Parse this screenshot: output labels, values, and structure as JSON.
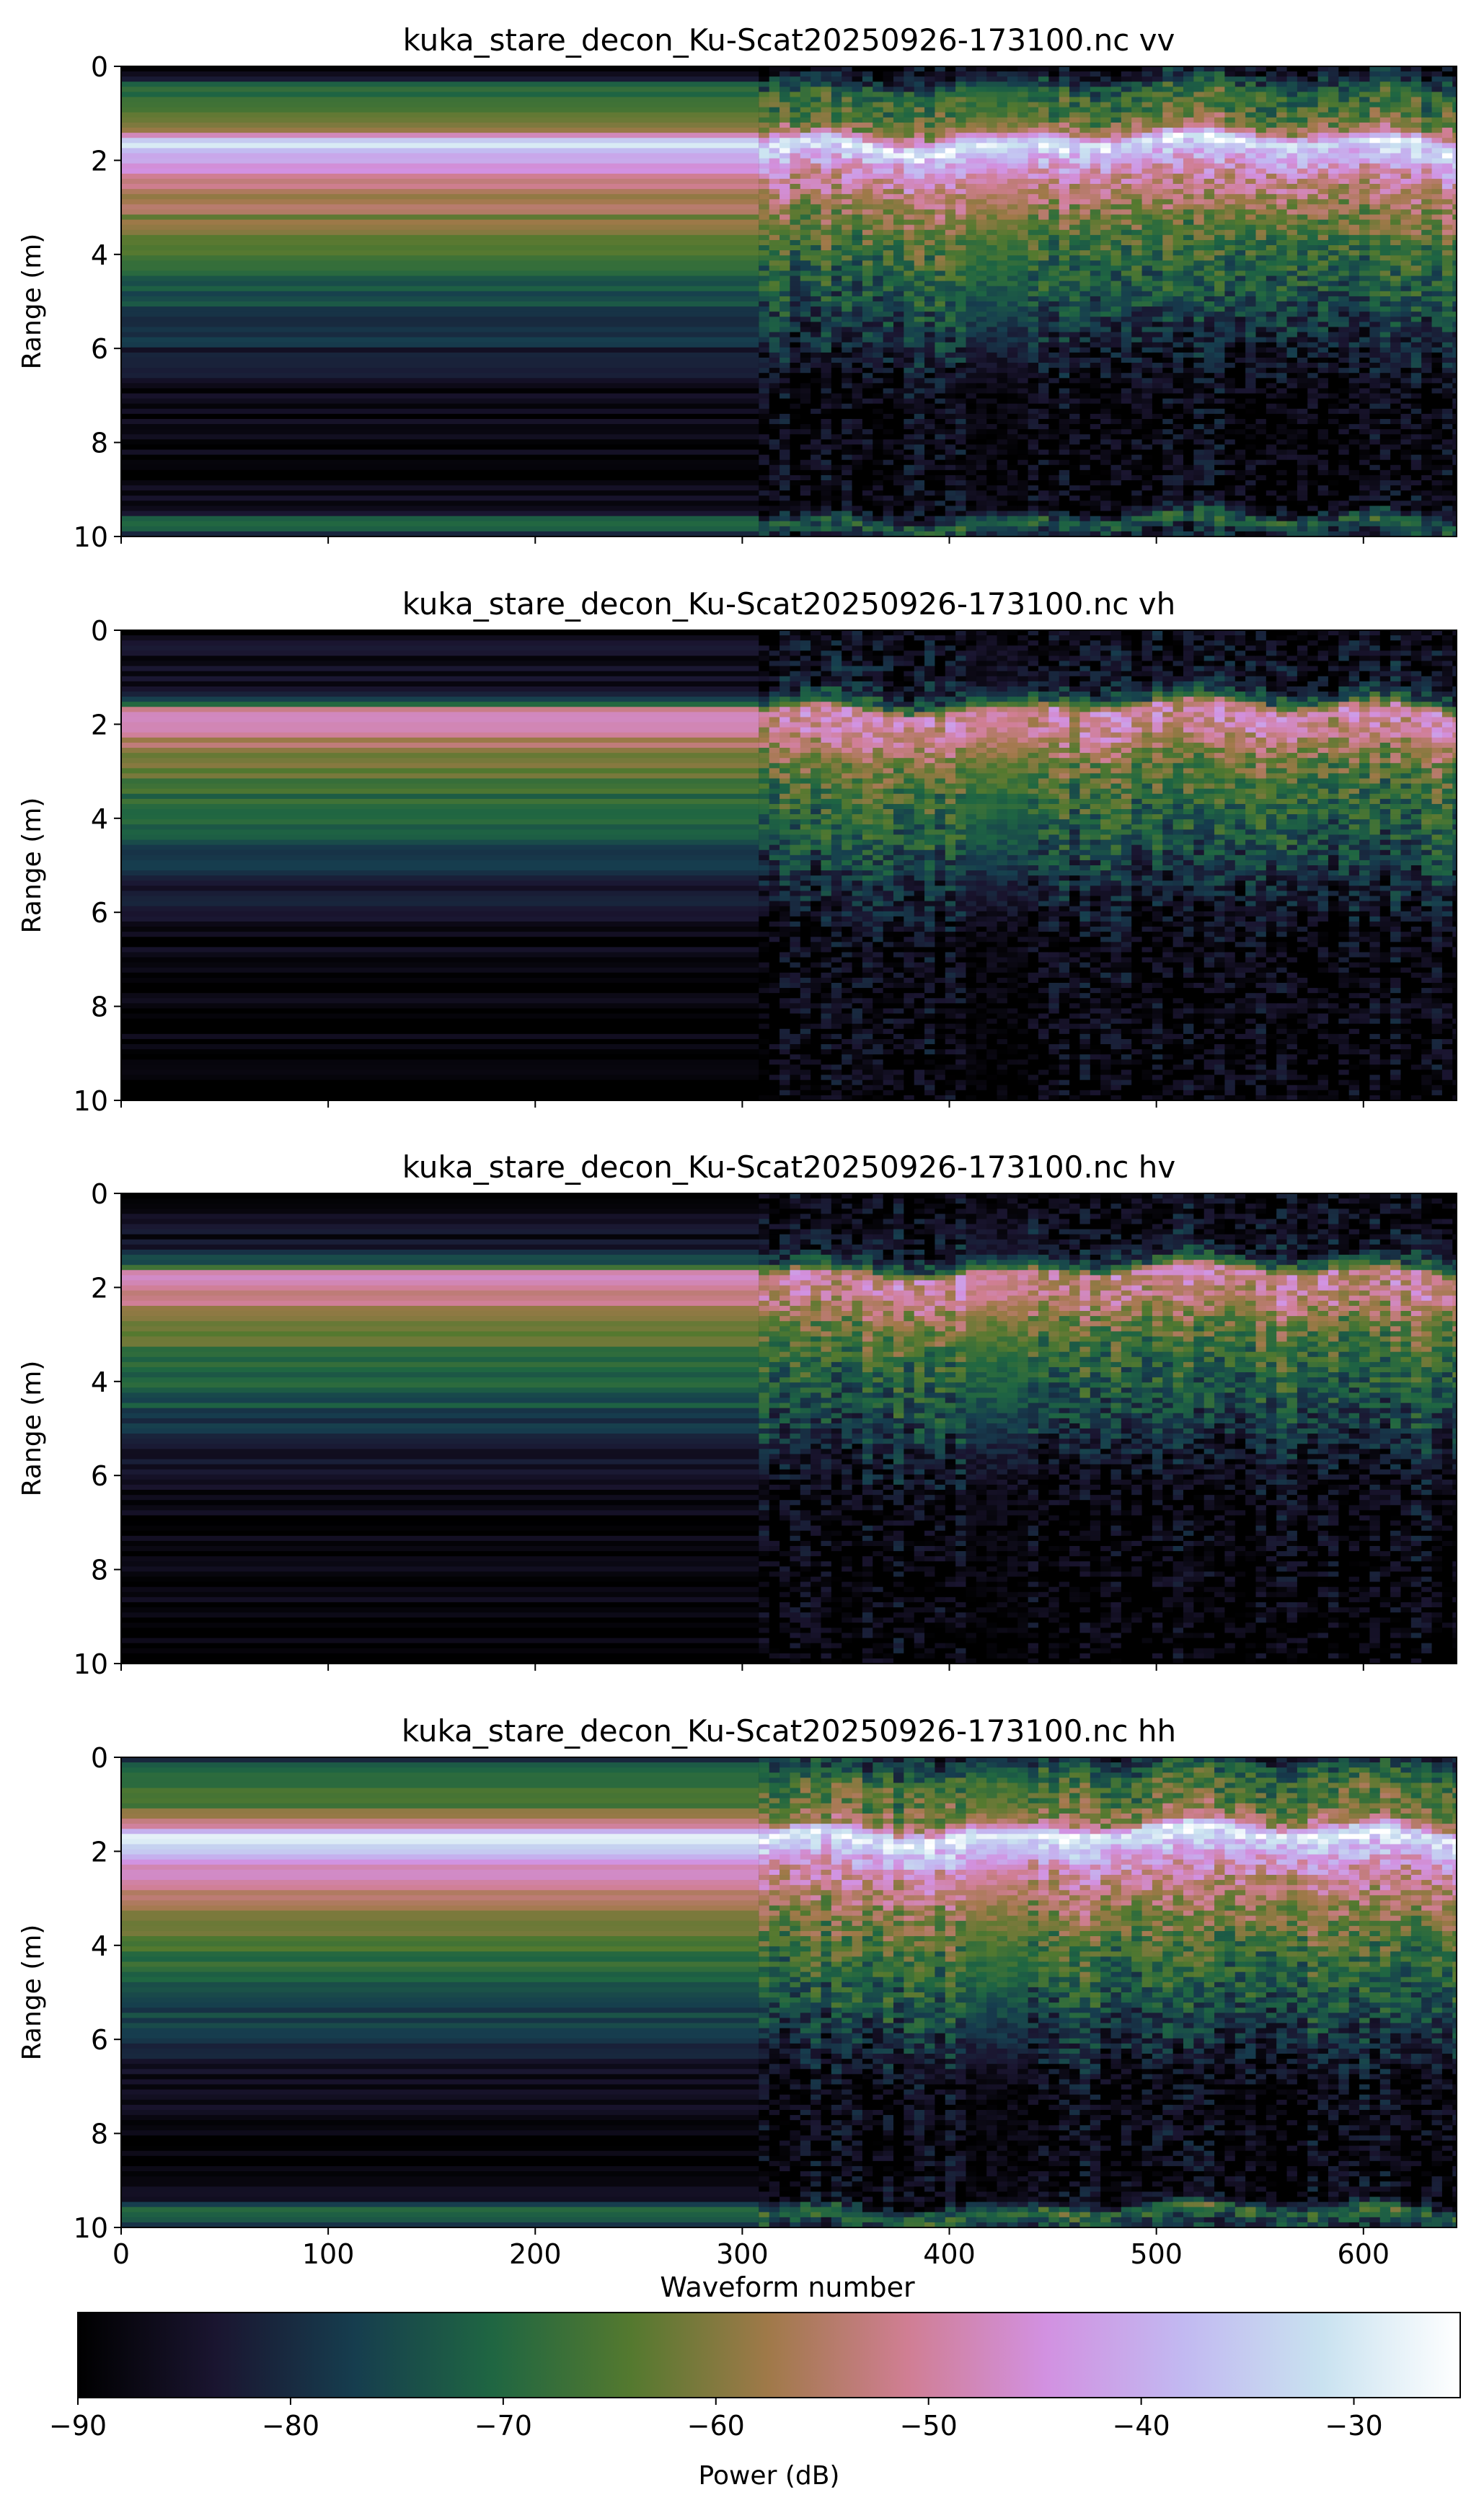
{
  "chart_data": [
    {
      "type": "heatmap",
      "title": "kuka_stare_decon_Ku-Scat20250926-173100.nc vv",
      "ylabel": "Range (m)",
      "xlabel": "",
      "xlim": [
        0,
        645
      ],
      "ylim": [
        10,
        0
      ],
      "xticks": [
        "0",
        "100",
        "200",
        "300",
        "400",
        "500",
        "600"
      ],
      "yticks": [
        "0",
        "2",
        "4",
        "6",
        "8",
        "10"
      ],
      "stare_end_waveform": 308,
      "gap_waveforms": [
        405,
        438
      ],
      "surface_range_m": 1.7,
      "profile": [
        {
          "r": 0.0,
          "db": -88
        },
        {
          "r": 0.3,
          "db": -78
        },
        {
          "r": 0.6,
          "db": -68
        },
        {
          "r": 1.0,
          "db": -66
        },
        {
          "r": 1.4,
          "db": -55
        },
        {
          "r": 1.65,
          "db": -28
        },
        {
          "r": 1.9,
          "db": -38
        },
        {
          "r": 2.4,
          "db": -50
        },
        {
          "r": 3.0,
          "db": -58
        },
        {
          "r": 4.0,
          "db": -68
        },
        {
          "r": 5.0,
          "db": -74
        },
        {
          "r": 6.0,
          "db": -82
        },
        {
          "r": 7.0,
          "db": -88
        },
        {
          "r": 9.4,
          "db": -88
        },
        {
          "r": 9.7,
          "db": -70
        },
        {
          "r": 10.0,
          "db": -82
        }
      ]
    },
    {
      "type": "heatmap",
      "title": "kuka_stare_decon_Ku-Scat20250926-173100.nc vh",
      "ylabel": "Range (m)",
      "xlabel": "",
      "xlim": [
        0,
        645
      ],
      "ylim": [
        10,
        0
      ],
      "xticks": [
        "0",
        "100",
        "200",
        "300",
        "400",
        "500",
        "600"
      ],
      "yticks": [
        "0",
        "2",
        "4",
        "6",
        "8",
        "10"
      ],
      "stare_end_waveform": 308,
      "gap_waveforms": [
        405,
        438
      ],
      "surface_range_m": 1.6,
      "profile": [
        {
          "r": 0.0,
          "db": -88
        },
        {
          "r": 1.2,
          "db": -84
        },
        {
          "r": 1.55,
          "db": -70
        },
        {
          "r": 1.7,
          "db": -50
        },
        {
          "r": 2.2,
          "db": -52
        },
        {
          "r": 2.8,
          "db": -62
        },
        {
          "r": 3.5,
          "db": -68
        },
        {
          "r": 4.5,
          "db": -74
        },
        {
          "r": 5.5,
          "db": -82
        },
        {
          "r": 6.5,
          "db": -88
        },
        {
          "r": 10.0,
          "db": -90
        }
      ]
    },
    {
      "type": "heatmap",
      "title": "kuka_stare_decon_Ku-Scat20250926-173100.nc hv",
      "ylabel": "Range (m)",
      "xlabel": "",
      "xlim": [
        0,
        645
      ],
      "ylim": [
        10,
        0
      ],
      "xticks": [
        "0",
        "100",
        "200",
        "300",
        "400",
        "500",
        "600"
      ],
      "yticks": [
        "0",
        "2",
        "4",
        "6",
        "8",
        "10"
      ],
      "stare_end_waveform": 308,
      "gap_waveforms": [
        405,
        438
      ],
      "surface_range_m": 1.6,
      "profile": [
        {
          "r": 0.0,
          "db": -88
        },
        {
          "r": 1.2,
          "db": -84
        },
        {
          "r": 1.55,
          "db": -70
        },
        {
          "r": 1.7,
          "db": -50
        },
        {
          "r": 2.2,
          "db": -52
        },
        {
          "r": 2.8,
          "db": -62
        },
        {
          "r": 3.5,
          "db": -68
        },
        {
          "r": 4.5,
          "db": -74
        },
        {
          "r": 5.5,
          "db": -82
        },
        {
          "r": 6.5,
          "db": -88
        },
        {
          "r": 10.0,
          "db": -90
        }
      ]
    },
    {
      "type": "heatmap",
      "title": "kuka_stare_decon_Ku-Scat20250926-173100.nc hh",
      "ylabel": "Range (m)",
      "xlabel": "Waveform number",
      "xlim": [
        0,
        645
      ],
      "ylim": [
        10,
        0
      ],
      "xticks": [
        "0",
        "100",
        "200",
        "300",
        "400",
        "500",
        "600"
      ],
      "yticks": [
        "0",
        "2",
        "4",
        "6",
        "8",
        "10"
      ],
      "stare_end_waveform": 308,
      "gap_waveforms": [
        405,
        438
      ],
      "surface_range_m": 1.7,
      "profile": [
        {
          "r": 0.0,
          "db": -80
        },
        {
          "r": 0.3,
          "db": -72
        },
        {
          "r": 0.6,
          "db": -66
        },
        {
          "r": 1.0,
          "db": -64
        },
        {
          "r": 1.4,
          "db": -55
        },
        {
          "r": 1.65,
          "db": -28
        },
        {
          "r": 1.9,
          "db": -36
        },
        {
          "r": 2.4,
          "db": -48
        },
        {
          "r": 3.0,
          "db": -56
        },
        {
          "r": 4.0,
          "db": -66
        },
        {
          "r": 5.0,
          "db": -72
        },
        {
          "r": 6.0,
          "db": -80
        },
        {
          "r": 7.0,
          "db": -88
        },
        {
          "r": 9.4,
          "db": -88
        },
        {
          "r": 9.7,
          "db": -68
        },
        {
          "r": 10.0,
          "db": -80
        }
      ]
    }
  ],
  "colorbar": {
    "label": "Power (dB)",
    "range": [
      -90,
      -25
    ],
    "ticks": [
      "−90",
      "−80",
      "−70",
      "−60",
      "−50",
      "−40",
      "−30"
    ],
    "tick_values": [
      -90,
      -80,
      -70,
      -60,
      -50,
      -40,
      -30
    ],
    "colormap": "cubehelix-like",
    "colors": [
      "#000000",
      "#1a1530",
      "#163d4e",
      "#1f6642",
      "#54792f",
      "#a07949",
      "#d07e93",
      "#d291e1",
      "#c2b9f1",
      "#c9e2f0",
      "#ffffff"
    ]
  }
}
